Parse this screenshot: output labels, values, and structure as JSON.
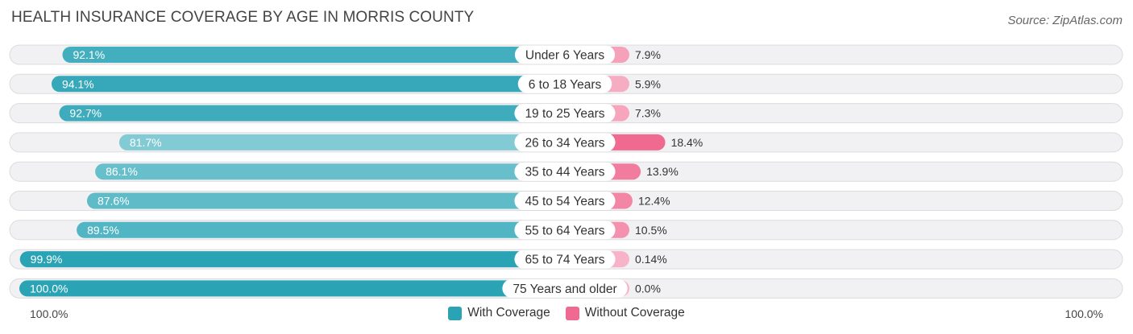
{
  "title": "HEALTH INSURANCE COVERAGE BY AGE IN MORRIS COUNTY",
  "source": "Source: ZipAtlas.com",
  "colors": {
    "with_strong": "#2aa3b5",
    "with_light": "#86cdd6",
    "without_strong": "#f06990",
    "without_light": "#f7b3c7",
    "track": "#f1f1f3",
    "track_border": "#dcdcdf"
  },
  "legend": {
    "with_label": "With Coverage",
    "without_label": "Without Coverage"
  },
  "axis": {
    "left_label": "100.0%",
    "right_label": "100.0%"
  },
  "chart_data": {
    "type": "bar",
    "orientation": "horizontal-diverging",
    "title": "HEALTH INSURANCE COVERAGE BY AGE IN MORRIS COUNTY",
    "categories": [
      "Under 6 Years",
      "6 to 18 Years",
      "19 to 25 Years",
      "26 to 34 Years",
      "35 to 44 Years",
      "45 to 54 Years",
      "55 to 64 Years",
      "65 to 74 Years",
      "75 Years and older"
    ],
    "series": [
      {
        "name": "With Coverage",
        "values": [
          92.1,
          94.1,
          92.7,
          81.7,
          86.1,
          87.6,
          89.5,
          99.9,
          100.0
        ],
        "labels": [
          "92.1%",
          "94.1%",
          "92.7%",
          "81.7%",
          "86.1%",
          "87.6%",
          "89.5%",
          "99.9%",
          "100.0%"
        ]
      },
      {
        "name": "Without Coverage",
        "values": [
          7.9,
          5.9,
          7.3,
          18.4,
          13.9,
          12.4,
          10.5,
          0.14,
          0.0
        ],
        "labels": [
          "7.9%",
          "5.9%",
          "7.3%",
          "18.4%",
          "13.9%",
          "12.4%",
          "10.5%",
          "0.14%",
          "0.0%"
        ]
      }
    ],
    "xlim": [
      0,
      100
    ],
    "legend_position": "bottom-center"
  }
}
